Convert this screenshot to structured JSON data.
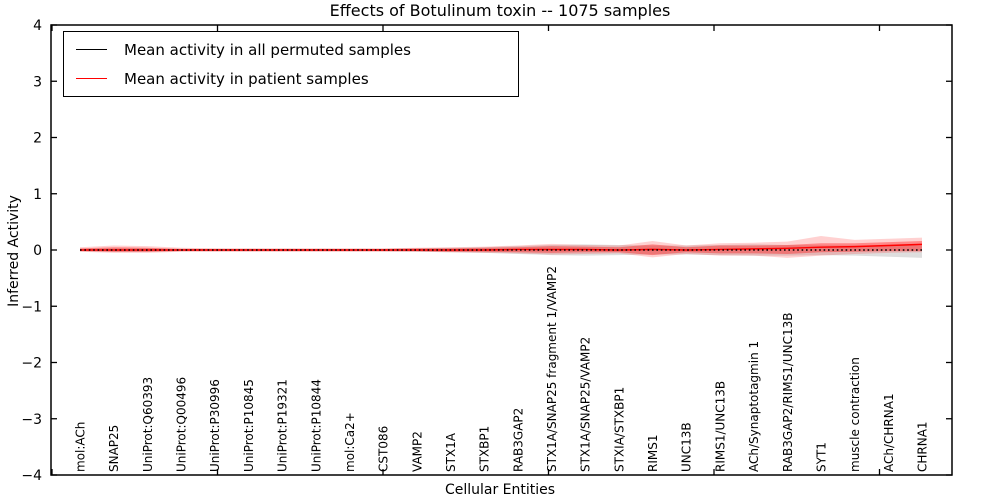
{
  "title": "Effects of Botulinum toxin -- 1075 samples",
  "legend": {
    "entries": [
      {
        "label": "Mean activity in all permuted samples",
        "color": "#000000"
      },
      {
        "label": "Mean activity in patient samples",
        "color": "#ff0000"
      }
    ]
  },
  "chart_data": {
    "type": "line",
    "title": "Effects of Botulinum toxin -- 1075 samples",
    "xlabel": "Cellular Entities",
    "ylabel": "Inferred Activity",
    "ylim": [
      -4,
      4
    ],
    "xlim": [
      0,
      26.5
    ],
    "grid": false,
    "legend_position": "upper-left",
    "yticks": [
      -4,
      -3,
      -2,
      -1,
      0,
      1,
      2,
      3,
      4
    ],
    "yticklabels": [
      "−4",
      "−3",
      "−2",
      "−1",
      "0",
      "1",
      "2",
      "3",
      "4"
    ],
    "xtick_values": [
      0,
      5,
      10,
      15,
      20,
      25
    ],
    "categories": [
      "mol:ACh",
      "SNAP25",
      "UniProt:Q60393",
      "UniProt:Q00496",
      "UniProt:P30996",
      "UniProt:P10845",
      "UniProt:P19321",
      "UniProt:P10844",
      "mol:Ca2+",
      "CST086",
      "VAMP2",
      "STX1A",
      "STXBP1",
      "RAB3GAP2",
      "STX1A/SNAP25 fragment 1/VAMP2",
      "STX1A/SNAP25/VAMP2",
      "STXIA/STXBP1",
      "RIMS1",
      "UNC13B",
      "RIMS1/UNC13B",
      "ACh/Synaptotagmin 1",
      "RAB3GAP2/RIMS1/UNC13B",
      "SYT1",
      "muscle contraction",
      "ACh/CHRNA1",
      "CHRNA1"
    ],
    "series": [
      {
        "name": "Mean activity in all permuted samples",
        "color": "#000000",
        "style": "dotted",
        "values": [
          0,
          0,
          0,
          0,
          0,
          0,
          0,
          0,
          0,
          0,
          0,
          0,
          0,
          0,
          0,
          0,
          0,
          0,
          0,
          0,
          0,
          0,
          0,
          0,
          0,
          0
        ]
      },
      {
        "name": "Mean activity in patient samples",
        "color": "#ff0000",
        "style": "solid",
        "values": [
          0,
          0,
          0,
          0,
          0,
          0,
          0,
          0,
          0,
          0,
          0,
          0,
          0,
          0.01,
          0.01,
          0.01,
          0,
          0.01,
          0,
          0.01,
          0.02,
          0.03,
          0.05,
          0.06,
          0.08,
          0.1
        ]
      }
    ],
    "bands": [
      {
        "name": "permuted-range",
        "color": "#000000",
        "opacity": 0.13,
        "upper": [
          0.02,
          0.03,
          0.03,
          0.02,
          0.02,
          0.02,
          0.02,
          0.02,
          0.02,
          0.02,
          0.03,
          0.04,
          0.05,
          0.07,
          0.09,
          0.1,
          0.09,
          0.08,
          0.08,
          0.09,
          0.1,
          0.09,
          0.08,
          0.08,
          0.08,
          0.08
        ],
        "lower": [
          -0.02,
          -0.03,
          -0.03,
          -0.02,
          -0.02,
          -0.02,
          -0.02,
          -0.02,
          -0.02,
          -0.02,
          -0.03,
          -0.04,
          -0.05,
          -0.07,
          -0.09,
          -0.1,
          -0.09,
          -0.08,
          -0.08,
          -0.09,
          -0.1,
          -0.1,
          -0.09,
          -0.1,
          -0.12,
          -0.14
        ]
      },
      {
        "name": "patient-outer",
        "color": "#ff0000",
        "opacity": 0.18,
        "upper": [
          0.05,
          0.08,
          0.07,
          0.04,
          0.03,
          0.03,
          0.03,
          0.03,
          0.03,
          0.03,
          0.04,
          0.05,
          0.06,
          0.08,
          0.11,
          0.09,
          0.08,
          0.16,
          0.08,
          0.12,
          0.13,
          0.15,
          0.25,
          0.18,
          0.2,
          0.22
        ],
        "lower": [
          -0.03,
          -0.05,
          -0.05,
          -0.03,
          -0.03,
          -0.03,
          -0.03,
          -0.03,
          -0.03,
          -0.03,
          -0.03,
          -0.04,
          -0.05,
          -0.06,
          -0.08,
          -0.07,
          -0.06,
          -0.13,
          -0.07,
          -0.1,
          -0.1,
          -0.14,
          -0.1,
          -0.07,
          -0.05,
          -0.04
        ]
      },
      {
        "name": "patient-inner",
        "color": "#ff0000",
        "opacity": 0.35,
        "upper": [
          0.03,
          0.05,
          0.04,
          0.02,
          0.02,
          0.02,
          0.02,
          0.02,
          0.02,
          0.02,
          0.03,
          0.03,
          0.04,
          0.05,
          0.07,
          0.06,
          0.05,
          0.1,
          0.05,
          0.08,
          0.08,
          0.09,
          0.12,
          0.12,
          0.14,
          0.16
        ],
        "lower": [
          -0.02,
          -0.03,
          -0.03,
          -0.02,
          -0.02,
          -0.02,
          -0.02,
          -0.02,
          -0.02,
          -0.02,
          -0.02,
          -0.03,
          -0.03,
          -0.04,
          -0.05,
          -0.04,
          -0.04,
          -0.09,
          -0.04,
          -0.06,
          -0.06,
          -0.07,
          -0.04,
          -0.03,
          -0.02,
          -0.02
        ]
      }
    ]
  }
}
